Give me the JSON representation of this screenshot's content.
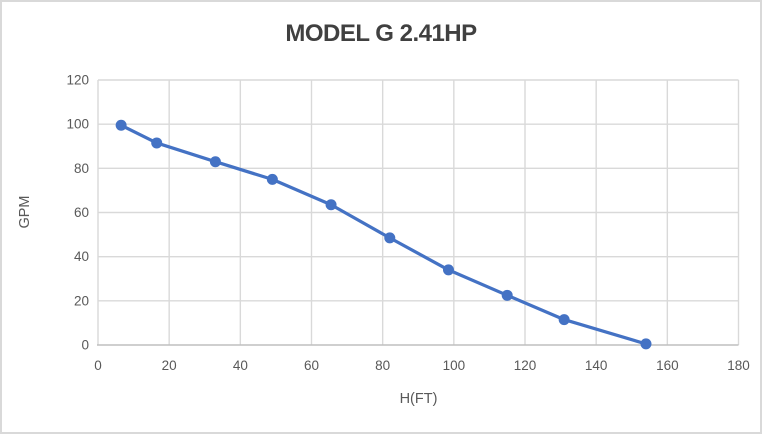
{
  "window": {
    "background": "#ffffff",
    "border_color": "#d9d9d9"
  },
  "chart_data": {
    "type": "line",
    "title": "MODEL G 2.41HP",
    "xlabel": "H(FT)",
    "ylabel": "GPM",
    "x": [
      6.5,
      16.5,
      33,
      49,
      65.5,
      82,
      98.5,
      115,
      131,
      154
    ],
    "y": [
      99.5,
      91.5,
      83,
      75,
      63.5,
      48.5,
      34,
      22.5,
      11.5,
      0.5
    ],
    "xlim": [
      0,
      180
    ],
    "ylim": [
      0,
      120
    ],
    "x_ticks": [
      0,
      20,
      40,
      60,
      80,
      100,
      120,
      140,
      160,
      180
    ],
    "y_ticks": [
      0,
      20,
      40,
      60,
      80,
      100,
      120
    ],
    "grid": true,
    "legend": "none",
    "marker": "circle",
    "marker_radius": 5.5,
    "line_width": 3.25,
    "colors": {
      "series": "#4472C4",
      "gridline": "#D9D9D9",
      "axis_line": "#BFBFBF",
      "title_text": "#404040",
      "tick_text": "#595959"
    }
  }
}
